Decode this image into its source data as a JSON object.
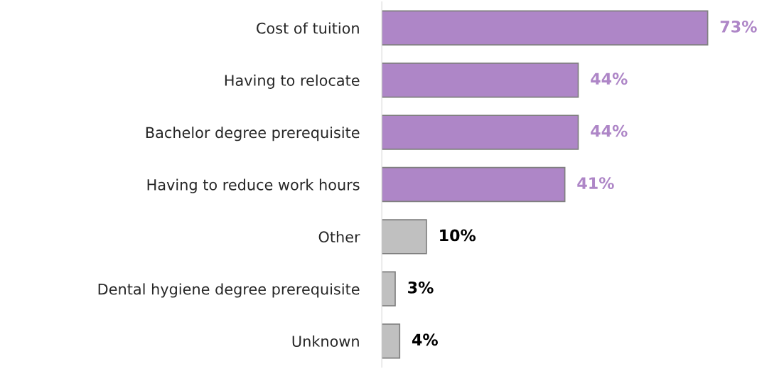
{
  "chart_data": {
    "type": "bar",
    "orientation": "horizontal",
    "categories": [
      "Cost of tuition",
      "Having to relocate",
      "Bachelor degree prerequisite",
      "Having to reduce work hours",
      "Other",
      "Dental hygiene degree prerequisite",
      "Unknown"
    ],
    "values": [
      73,
      44,
      44,
      41,
      10,
      3,
      4
    ],
    "colors": [
      "#ae86c7",
      "#ae86c7",
      "#ae86c7",
      "#ae86c7",
      "#c0c0c0",
      "#c0c0c0",
      "#c0c0c0"
    ],
    "value_labels": [
      "73%",
      "44%",
      "44%",
      "41%",
      "10%",
      "3%",
      "4%"
    ],
    "grid": false
  }
}
